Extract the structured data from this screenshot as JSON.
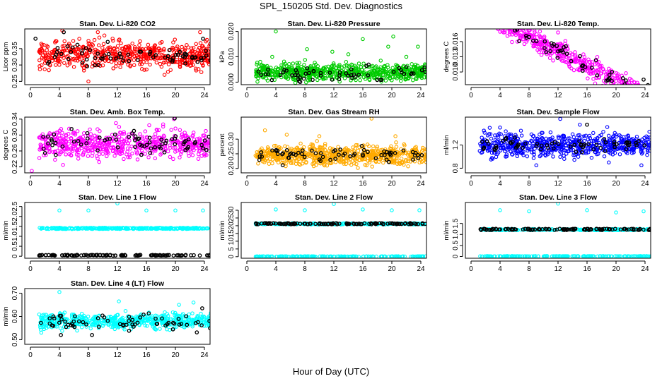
{
  "figure": {
    "title": "SPL_150205  Std. Dev. Diagnostics",
    "xlabel": "Hour of Day (UTC)"
  },
  "colors": {
    "red": "#ff0000",
    "green": "#00cc00",
    "magenta": "#ff00ff",
    "orange": "#ffaa00",
    "blue": "#0000ff",
    "cyan": "#00ffff",
    "black": "#000000"
  },
  "chart_data": [
    {
      "type": "scatter",
      "title": "Stan. Dev. Li-820 CO2",
      "ylabel": "Licor ppm",
      "xlim": [
        0,
        24
      ],
      "ylim": [
        0.24,
        0.41
      ],
      "x_ticks": [
        "0",
        "4",
        "8",
        "12",
        "16",
        "20",
        "24"
      ],
      "y_ticks": [
        {
          "v": 0.25,
          "label": "0.25"
        },
        {
          "v": 0.3,
          "label": "0.30"
        },
        {
          "v": 0.35,
          "label": "0.35"
        }
      ],
      "series": [
        {
          "color": "red",
          "band": [
            0.28,
            0.38
          ],
          "n": 560,
          "outliers": [
            [
              4.4,
              0.405
            ],
            [
              9.3,
              0.4
            ],
            [
              10.2,
              0.39
            ],
            [
              23.4,
              0.4
            ],
            [
              8,
              0.25
            ],
            [
              18.5,
              0.27
            ]
          ]
        },
        {
          "color": "black",
          "band": [
            0.29,
            0.37
          ],
          "n": 70,
          "outliers": [
            [
              4.6,
              0.4
            ],
            [
              23.8,
              0.38
            ],
            [
              0.7,
              0.38
            ]
          ]
        }
      ]
    },
    {
      "type": "scatter",
      "title": "Stan. Dev. Li-820 Pressure",
      "ylabel": "kPa",
      "xlim": [
        0,
        24
      ],
      "ylim": [
        -0.001,
        0.021
      ],
      "x_ticks": [
        "0",
        "4",
        "8",
        "12",
        "16",
        "20",
        "24"
      ],
      "y_ticks": [
        {
          "v": 0.0,
          "label": "0.000"
        },
        {
          "v": 0.01,
          "label": "0.010"
        },
        {
          "v": 0.02,
          "label": "0.020"
        }
      ],
      "series": [
        {
          "color": "green",
          "band": [
            0.0,
            0.008
          ],
          "n": 640,
          "outliers": [
            [
              4.0,
              0.02
            ],
            [
              8.3,
              0.013
            ],
            [
              11.8,
              0.012
            ],
            [
              16.0,
              0.017
            ],
            [
              19.5,
              0.014
            ],
            [
              20.2,
              0.018
            ],
            [
              23.6,
              0.014
            ],
            [
              3.5,
              0.01
            ],
            [
              14.0,
              0.011
            ],
            [
              22.0,
              0.01
            ]
          ]
        },
        {
          "color": "black",
          "band": [
            0.0,
            0.007
          ],
          "n": 60,
          "outliers": []
        }
      ]
    },
    {
      "type": "scatter",
      "title": "Stan. Dev. Li-820 Temp.",
      "ylabel": "degrees C",
      "xlim": [
        0,
        24
      ],
      "ylim": [
        0.0075,
        0.0185
      ],
      "x_ticks": [
        "0",
        "4",
        "8",
        "12",
        "16",
        "20",
        "24"
      ],
      "y_ticks": [
        {
          "v": 0.01,
          "label": "0.010"
        },
        {
          "v": 0.013,
          "label": "0.013"
        },
        {
          "v": 0.016,
          "label": "0.016"
        }
      ],
      "series": [
        {
          "color": "magenta",
          "band": [
            0.0115,
            0.0165
          ],
          "trend": -6e-05,
          "n": 560,
          "outliers": [
            [
              4.5,
              0.0178
            ],
            [
              9.5,
              0.018
            ],
            [
              21.0,
              0.008
            ],
            [
              22.5,
              0.008
            ],
            [
              12.0,
              0.0178
            ]
          ]
        },
        {
          "color": "black",
          "band": [
            0.0118,
            0.0165
          ],
          "trend": -6e-05,
          "n": 65,
          "outliers": [
            [
              23.8,
              0.0085
            ]
          ]
        }
      ]
    },
    {
      "type": "scatter",
      "title": "Stan. Dev. Amb. Box Temp.",
      "ylabel": "degrees C",
      "xlim": [
        0,
        24
      ],
      "ylim": [
        0.205,
        0.345
      ],
      "x_ticks": [
        "0",
        "4",
        "8",
        "12",
        "16",
        "20",
        "24"
      ],
      "y_ticks": [
        {
          "v": 0.22,
          "label": "0.22"
        },
        {
          "v": 0.26,
          "label": "0.26"
        },
        {
          "v": 0.3,
          "label": "0.30"
        },
        {
          "v": 0.34,
          "label": "0.34"
        }
      ],
      "series": [
        {
          "color": "magenta",
          "band": [
            0.235,
            0.32
          ],
          "n": 560,
          "outliers": [
            [
              0.2,
              0.21
            ],
            [
              19.8,
              0.34
            ],
            [
              4.5,
              0.225
            ],
            [
              11.8,
              0.33
            ]
          ]
        },
        {
          "color": "black",
          "band": [
            0.245,
            0.315
          ],
          "n": 70,
          "outliers": [
            [
              19.9,
              0.342
            ]
          ]
        }
      ]
    },
    {
      "type": "scatter",
      "title": "Stan. Dev. Gas Stream RH",
      "ylabel": "percent",
      "xlim": [
        0,
        24
      ],
      "ylim": [
        0.185,
        0.375
      ],
      "x_ticks": [
        "0",
        "4",
        "8",
        "12",
        "16",
        "20",
        "24"
      ],
      "y_ticks": [
        {
          "v": 0.2,
          "label": "0.20"
        },
        {
          "v": 0.25,
          "label": "0.25"
        },
        {
          "v": 0.3,
          "label": "0.30"
        }
      ],
      "series": [
        {
          "color": "orange",
          "band": [
            0.205,
            0.285
          ],
          "n": 640,
          "outliers": [
            [
              17.2,
              0.37
            ],
            [
              2.5,
              0.33
            ],
            [
              5.5,
              0.315
            ],
            [
              10.0,
              0.31
            ],
            [
              20.5,
              0.31
            ]
          ]
        },
        {
          "color": "black",
          "band": [
            0.215,
            0.28
          ],
          "n": 65,
          "outliers": []
        }
      ]
    },
    {
      "type": "scatter",
      "title": "Stan. Dev. Sample Flow",
      "ylabel": "ml/min",
      "xlim": [
        0,
        24
      ],
      "ylim": [
        0.72,
        1.68
      ],
      "x_ticks": [
        "0",
        "4",
        "8",
        "12",
        "16",
        "20",
        "24"
      ],
      "y_ticks": [
        {
          "v": 0.8,
          "label": "0.8"
        },
        {
          "v": 1.2,
          "label": "1.2"
        }
      ],
      "series": [
        {
          "color": "blue",
          "band": [
            0.95,
            1.45
          ],
          "n": 600,
          "outliers": [
            [
              12.3,
              1.65
            ],
            [
              4.0,
              1.5
            ],
            [
              9.0,
              0.85
            ],
            [
              23.5,
              0.85
            ],
            [
              15.0,
              1.55
            ],
            [
              19.0,
              0.9
            ]
          ]
        },
        {
          "color": "black",
          "band": [
            1.05,
            1.35
          ],
          "n": 65,
          "outliers": [
            [
              16.0,
              1.55
            ]
          ]
        }
      ]
    },
    {
      "type": "scatter",
      "title": "Stan. Dev. Line 1 Flow",
      "ylabel": "ml/min",
      "xlim": [
        0,
        24
      ],
      "ylim": [
        -0.1,
        2.7
      ],
      "x_ticks": [
        "0",
        "4",
        "8",
        "12",
        "16",
        "20",
        "24"
      ],
      "y_ticks": [
        {
          "v": 0,
          "label": "0"
        },
        {
          "v": 0.5,
          "label": "0.5"
        },
        {
          "v": 1.0,
          "label": "1.0"
        },
        {
          "v": 1.5,
          "label": "1.5"
        },
        {
          "v": 2.0,
          "label": "2.0"
        },
        {
          "v": 2.5,
          "label": "2.5"
        }
      ],
      "series": [
        {
          "color": "cyan",
          "band": [
            1.37,
            1.43
          ],
          "n": 280,
          "outliers": [
            [
              4,
              2.3
            ],
            [
              8,
              2.3
            ],
            [
              12,
              2.65
            ],
            [
              16,
              2.3
            ],
            [
              20,
              2.3
            ],
            [
              23.8,
              2.3
            ]
          ]
        },
        {
          "color": "black",
          "band": [
            0.03,
            0.07
          ],
          "n": 110,
          "outliers": []
        }
      ]
    },
    {
      "type": "scatter",
      "title": "Stan. Dev. Line 2 Flow",
      "ylabel": "ml/min",
      "xlim": [
        0,
        24
      ],
      "ylim": [
        -1,
        35
      ],
      "x_ticks": [
        "0",
        "4",
        "8",
        "12",
        "16",
        "20",
        "24"
      ],
      "y_ticks": [
        {
          "v": 0,
          "label": "0"
        },
        {
          "v": 5,
          "label": "5"
        },
        {
          "v": 10,
          "label": "10"
        },
        {
          "v": 15,
          "label": "15"
        },
        {
          "v": 20,
          "label": "20"
        },
        {
          "v": 25,
          "label": "25"
        },
        {
          "v": 30,
          "label": "30"
        }
      ],
      "series": [
        {
          "color": "cyan",
          "band": [
            20.8,
            21.6
          ],
          "n": 240,
          "outliers": [
            [
              4,
              30.5
            ],
            [
              8,
              30
            ],
            [
              12,
              34
            ],
            [
              16,
              30.5
            ],
            [
              20,
              30
            ],
            [
              23.8,
              30
            ]
          ]
        },
        {
          "color": "cyan",
          "band": [
            0.0,
            0.3
          ],
          "n": 170,
          "outliers": []
        },
        {
          "color": "black",
          "band": [
            20.9,
            21.7
          ],
          "n": 110,
          "outliers": []
        }
      ]
    },
    {
      "type": "scatter",
      "title": "Stan. Dev. Line 3 Flow",
      "ylabel": "ml/min",
      "xlim": [
        0,
        24
      ],
      "ylim": [
        -0.08,
        2.45
      ],
      "x_ticks": [
        "0",
        "4",
        "8",
        "12",
        "16",
        "20",
        "24"
      ],
      "y_ticks": [
        {
          "v": 0,
          "label": "0"
        },
        {
          "v": 0.5,
          "label": "0.5"
        },
        {
          "v": 1.0,
          "label": "1.0"
        },
        {
          "v": 1.5,
          "label": "1.5"
        }
      ],
      "series": [
        {
          "color": "cyan",
          "band": [
            1.19,
            1.25
          ],
          "n": 240,
          "outliers": [
            [
              4,
              2.1
            ],
            [
              8,
              2.05
            ],
            [
              12,
              2.4
            ],
            [
              16,
              2.1
            ],
            [
              20,
              2.0
            ],
            [
              23.8,
              2.05
            ]
          ]
        },
        {
          "color": "cyan",
          "band": [
            0.0,
            0.02
          ],
          "n": 170,
          "outliers": []
        },
        {
          "color": "black",
          "band": [
            1.2,
            1.26
          ],
          "n": 110,
          "outliers": []
        }
      ]
    },
    {
      "type": "scatter",
      "title": "Stan. Dev. Line 4 (LT) Flow",
      "ylabel": "ml/min",
      "xlim": [
        0,
        24
      ],
      "ylim": [
        0.48,
        0.72
      ],
      "x_ticks": [
        "0",
        "4",
        "8",
        "12",
        "16",
        "20",
        "24"
      ],
      "y_ticks": [
        {
          "v": 0.5,
          "label": "0.50"
        },
        {
          "v": 0.6,
          "label": "0.60"
        },
        {
          "v": 0.7,
          "label": "0.70"
        }
      ],
      "series": [
        {
          "color": "cyan",
          "band": [
            0.54,
            0.62
          ],
          "n": 560,
          "outliers": [
            [
              4.0,
              0.705
            ],
            [
              12.2,
              0.665
            ],
            [
              22.5,
              0.66
            ],
            [
              20.5,
              0.65
            ],
            [
              1.5,
              0.53
            ]
          ]
        },
        {
          "color": "black",
          "band": [
            0.53,
            0.62
          ],
          "n": 65,
          "outliers": [
            [
              23.7,
              0.635
            ],
            [
              4.2,
              0.52
            ],
            [
              8.5,
              0.52
            ]
          ]
        }
      ]
    }
  ]
}
